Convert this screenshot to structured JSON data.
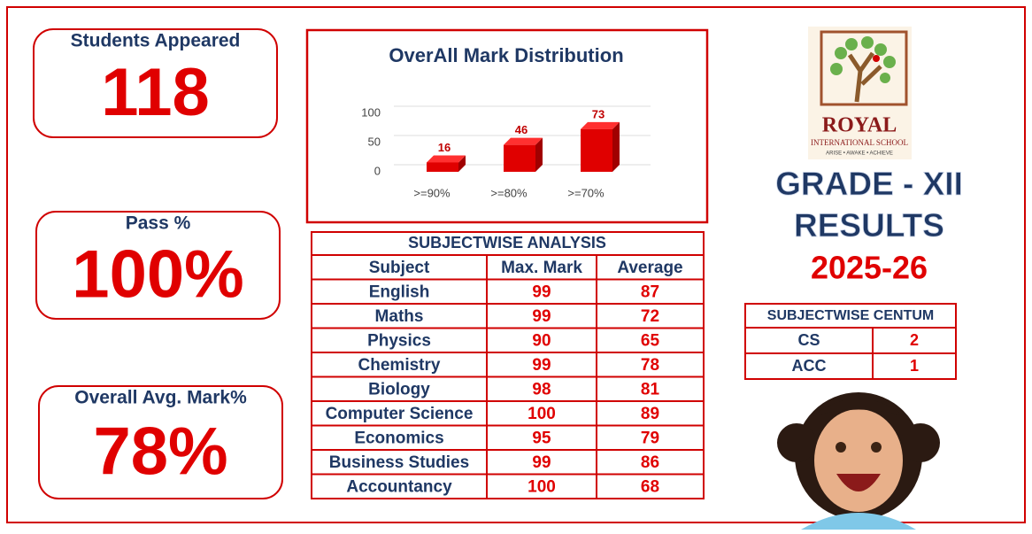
{
  "stats": [
    {
      "label": "Students Appeared",
      "value": "118"
    },
    {
      "label": "Pass %",
      "value": "100%"
    },
    {
      "label": "Overall Avg. Mark%",
      "value": "78%"
    }
  ],
  "chart_data": {
    "type": "bar",
    "title": "OverAll Mark Distribution",
    "categories": [
      ">=90%",
      ">=80%",
      ">=70%"
    ],
    "values": [
      16,
      46,
      73
    ],
    "color": "#e00000",
    "ylim": [
      0,
      100
    ],
    "yticks": [
      0,
      50,
      100
    ],
    "grid": true,
    "value_labels_shown": true
  },
  "logo": {
    "name": "ROYAL",
    "subtitle": "INTERNATIONAL SCHOOL",
    "motto": "ARISE • AWAKE • ACHIEVE"
  },
  "heading": {
    "grade": "GRADE - XII",
    "results": "RESULTS",
    "year": "2025-26"
  },
  "subject_table": {
    "title": "SUBJECTWISE ANALYSIS",
    "header": [
      "Subject",
      "Max. Mark",
      "Average"
    ],
    "rows": [
      [
        "English",
        "99",
        "87"
      ],
      [
        "Maths",
        "99",
        "72"
      ],
      [
        "Physics",
        "90",
        "65"
      ],
      [
        "Chemistry",
        "99",
        "78"
      ],
      [
        "Biology",
        "98",
        "81"
      ],
      [
        "Computer Science",
        "100",
        "89"
      ],
      [
        "Economics",
        "95",
        "79"
      ],
      [
        "Business Studies",
        "99",
        "86"
      ],
      [
        "Accountancy",
        "100",
        "68"
      ]
    ]
  },
  "centum_table": {
    "title": "SUBJECTWISE CENTUM",
    "rows": [
      [
        "CS",
        "2"
      ],
      [
        "ACC",
        "1"
      ]
    ]
  }
}
